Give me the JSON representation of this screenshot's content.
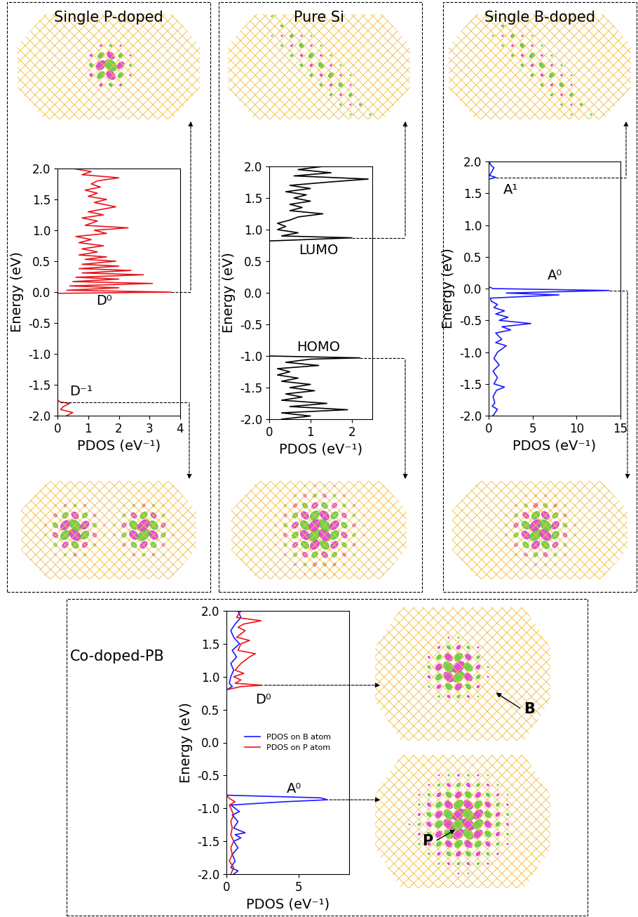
{
  "chart_data": [
    {
      "type": "line",
      "orientation": "horizontal",
      "title": "Single P-doped",
      "xlabel": "PDOS (eV⁻¹)",
      "ylabel": "Energy (eV)",
      "xlim": [
        0,
        4
      ],
      "xticks": [
        0,
        1,
        2,
        3,
        4
      ],
      "ylim": [
        -2.0,
        2.0
      ],
      "yticks": [
        -2.0,
        -1.5,
        -1.0,
        -0.5,
        0.0,
        0.5,
        1.0,
        1.5,
        2.0
      ],
      "series": [
        {
          "color": "#e8151b",
          "x": [
            -2.0,
            -1.95,
            -1.9,
            -1.85,
            -1.8,
            -1.78,
            -1.75,
            -0.02,
            0.0,
            0.03,
            0.07,
            0.1,
            0.14,
            0.17,
            0.21,
            0.24,
            0.28,
            0.31,
            0.35,
            0.38,
            0.42,
            0.45,
            0.5,
            0.53,
            0.57,
            0.6,
            0.65,
            0.7,
            0.75,
            0.8,
            0.85,
            0.9,
            0.95,
            1.0,
            1.04,
            1.08,
            1.15,
            1.2,
            1.25,
            1.3,
            1.38,
            1.45,
            1.5,
            1.55,
            1.6,
            1.65,
            1.7,
            1.75,
            1.8,
            1.85,
            1.9,
            1.95,
            2.0
          ],
          "values": [
            0.3,
            0.5,
            0.1,
            0.2,
            0.4,
            0.1,
            0.0,
            0.0,
            3.7,
            0.3,
            2.0,
            0.4,
            3.1,
            0.5,
            2.0,
            0.6,
            2.8,
            0.8,
            2.4,
            0.7,
            2.0,
            0.8,
            1.9,
            0.9,
            1.6,
            0.7,
            1.3,
            0.8,
            1.5,
            0.7,
            1.1,
            0.6,
            1.6,
            1.2,
            2.3,
            0.9,
            1.3,
            0.8,
            1.5,
            1.0,
            1.9,
            1.2,
            1.6,
            1.0,
            1.3,
            0.9,
            1.4,
            1.1,
            1.3,
            2.0,
            0.8,
            1.1,
            0.5
          ]
        }
      ],
      "annotations": [
        {
          "text": "D⁰",
          "y": 0.0
        },
        {
          "text": "D⁻¹",
          "y": -1.78
        }
      ]
    },
    {
      "type": "line",
      "orientation": "horizontal",
      "title": "Pure Si",
      "xlabel": "PDOS (eV⁻¹)",
      "ylabel": "Energy (eV)",
      "xlim": [
        0,
        2.5
      ],
      "xticks": [
        0,
        1,
        2
      ],
      "ylim": [
        -2.0,
        2.0
      ],
      "yticks": [
        -2.0,
        -1.5,
        -1.0,
        -0.5,
        0.0,
        0.5,
        1.0,
        1.5,
        2.0
      ],
      "series": [
        {
          "color": "#000000",
          "x": [
            -2.0,
            -1.95,
            -1.9,
            -1.85,
            -1.8,
            -1.75,
            -1.7,
            -1.65,
            -1.6,
            -1.55,
            -1.5,
            -1.45,
            -1.4,
            -1.35,
            -1.3,
            -1.25,
            -1.2,
            -1.15,
            -1.1,
            -1.05,
            -1.03,
            -1.0,
            0.82,
            0.87,
            0.9,
            0.95,
            1.0,
            1.05,
            1.1,
            1.15,
            1.2,
            1.25,
            1.3,
            1.35,
            1.4,
            1.45,
            1.5,
            1.55,
            1.6,
            1.65,
            1.7,
            1.75,
            1.8,
            1.85,
            1.9,
            1.95,
            2.0
          ],
          "values": [
            0.3,
            1.0,
            0.3,
            1.9,
            0.5,
            1.4,
            0.3,
            0.8,
            0.4,
            1.1,
            0.5,
            1.0,
            0.3,
            0.7,
            0.2,
            0.5,
            0.2,
            1.2,
            0.4,
            1.0,
            2.2,
            0.0,
            0.0,
            2.0,
            0.3,
            0.7,
            0.2,
            0.4,
            0.2,
            0.5,
            0.7,
            1.3,
            0.5,
            0.8,
            0.5,
            1.0,
            0.6,
            0.9,
            0.4,
            1.0,
            0.5,
            1.4,
            2.4,
            0.6,
            1.5,
            0.7,
            1.3
          ]
        }
      ],
      "annotations": [
        {
          "text": "LUMO",
          "y": 0.87
        },
        {
          "text": "HOMO",
          "y": -1.03
        }
      ]
    },
    {
      "type": "line",
      "orientation": "horizontal",
      "title": "Single B-doped",
      "xlabel": "PDOS (eV⁻¹)",
      "ylabel": "Energy (eV)",
      "xlim": [
        0,
        15
      ],
      "xticks": [
        0,
        5,
        10,
        15
      ],
      "ylim": [
        -2.0,
        2.0
      ],
      "yticks": [
        -2.0,
        -1.5,
        -1.0,
        -0.5,
        0.0,
        0.5,
        1.0,
        1.5,
        2.0
      ],
      "series": [
        {
          "color": "#1a1aff",
          "x": [
            -2.0,
            -1.9,
            -1.85,
            -1.8,
            -1.7,
            -1.6,
            -1.55,
            -1.5,
            -1.4,
            -1.3,
            -1.2,
            -1.1,
            -1.0,
            -0.9,
            -0.85,
            -0.8,
            -0.7,
            -0.65,
            -0.6,
            -0.55,
            -0.5,
            -0.45,
            -0.4,
            -0.35,
            -0.3,
            -0.25,
            -0.2,
            -0.15,
            -0.1,
            -0.07,
            -0.03,
            0.0,
            0.03,
            1.72,
            1.75,
            1.78,
            1.9,
            1.95,
            2.0
          ],
          "values": [
            0.5,
            1.0,
            0.4,
            0.7,
            0.5,
            0.9,
            1.8,
            0.6,
            1.0,
            0.5,
            1.2,
            0.6,
            1.0,
            2.0,
            0.8,
            1.5,
            0.8,
            2.5,
            1.5,
            4.8,
            1.2,
            2.2,
            0.8,
            1.8,
            0.6,
            1.0,
            0.3,
            0.2,
            8.0,
            2.0,
            13.7,
            0.5,
            0.0,
            0.0,
            0.8,
            0.1,
            0.6,
            0.2,
            0.1
          ]
        }
      ],
      "annotations": [
        {
          "text": "A¹",
          "y": 1.75
        },
        {
          "text": "A⁰",
          "y": -0.03
        }
      ]
    },
    {
      "type": "line",
      "orientation": "horizontal",
      "title": "Co-doped-PB",
      "xlabel": "PDOS (eV⁻¹)",
      "ylabel": "Energy (eV)",
      "xlim": [
        0,
        8.5
      ],
      "xticks": [
        0,
        5
      ],
      "ylim": [
        -2.0,
        2.0
      ],
      "yticks": [
        -2.0,
        -1.5,
        -1.0,
        -0.5,
        0.0,
        0.5,
        1.0,
        1.5,
        2.0
      ],
      "legend": "center",
      "series": [
        {
          "name": "PDOS on B atom",
          "color": "#1a1aff",
          "x": [
            -2.0,
            -1.95,
            -1.9,
            -1.8,
            -1.7,
            -1.6,
            -1.5,
            -1.45,
            -1.4,
            -1.37,
            -1.3,
            -1.2,
            -1.1,
            -1.05,
            -1.0,
            -0.95,
            -0.9,
            -0.87,
            -0.84,
            -0.8,
            0.8,
            0.85,
            0.9,
            1.0,
            1.1,
            1.2,
            1.3,
            1.4,
            1.5,
            1.6,
            1.7,
            1.8,
            1.9,
            2.0
          ],
          "values": [
            0.5,
            0.8,
            0.3,
            0.6,
            0.4,
            0.8,
            0.5,
            1.0,
            0.6,
            1.3,
            0.5,
            0.8,
            0.4,
            0.9,
            0.6,
            0.3,
            4.0,
            7.0,
            6.5,
            0.0,
            0.0,
            0.4,
            0.2,
            0.3,
            0.5,
            0.3,
            0.7,
            0.4,
            0.9,
            0.5,
            0.3,
            0.6,
            1.0,
            0.8
          ]
        },
        {
          "name": "PDOS on P atom",
          "color": "#e8151b",
          "x": [
            -2.0,
            -1.9,
            -1.8,
            -1.7,
            -1.6,
            -1.5,
            -1.4,
            -1.3,
            -1.2,
            -1.1,
            -1.0,
            -0.95,
            -0.9,
            -0.85,
            -0.8,
            0.8,
            0.85,
            0.87,
            0.9,
            0.95,
            1.0,
            1.05,
            1.1,
            1.2,
            1.3,
            1.35,
            1.4,
            1.5,
            1.55,
            1.6,
            1.7,
            1.75,
            1.8,
            1.85,
            1.9,
            2.0
          ],
          "values": [
            0.3,
            0.5,
            0.2,
            0.4,
            0.3,
            0.5,
            0.3,
            0.4,
            0.3,
            0.5,
            0.3,
            0.2,
            0.6,
            0.2,
            0.0,
            0.0,
            1.0,
            2.5,
            0.6,
            1.0,
            0.5,
            1.2,
            0.6,
            1.0,
            1.6,
            2.0,
            0.8,
            1.0,
            1.6,
            0.7,
            1.3,
            0.8,
            1.2,
            2.4,
            0.7,
            1.0
          ]
        }
      ],
      "annotations": [
        {
          "text": "D⁰",
          "y": 0.87,
          "atom_label": "B"
        },
        {
          "text": "A⁰",
          "y": -0.87,
          "atom_label": "P"
        }
      ]
    }
  ]
}
